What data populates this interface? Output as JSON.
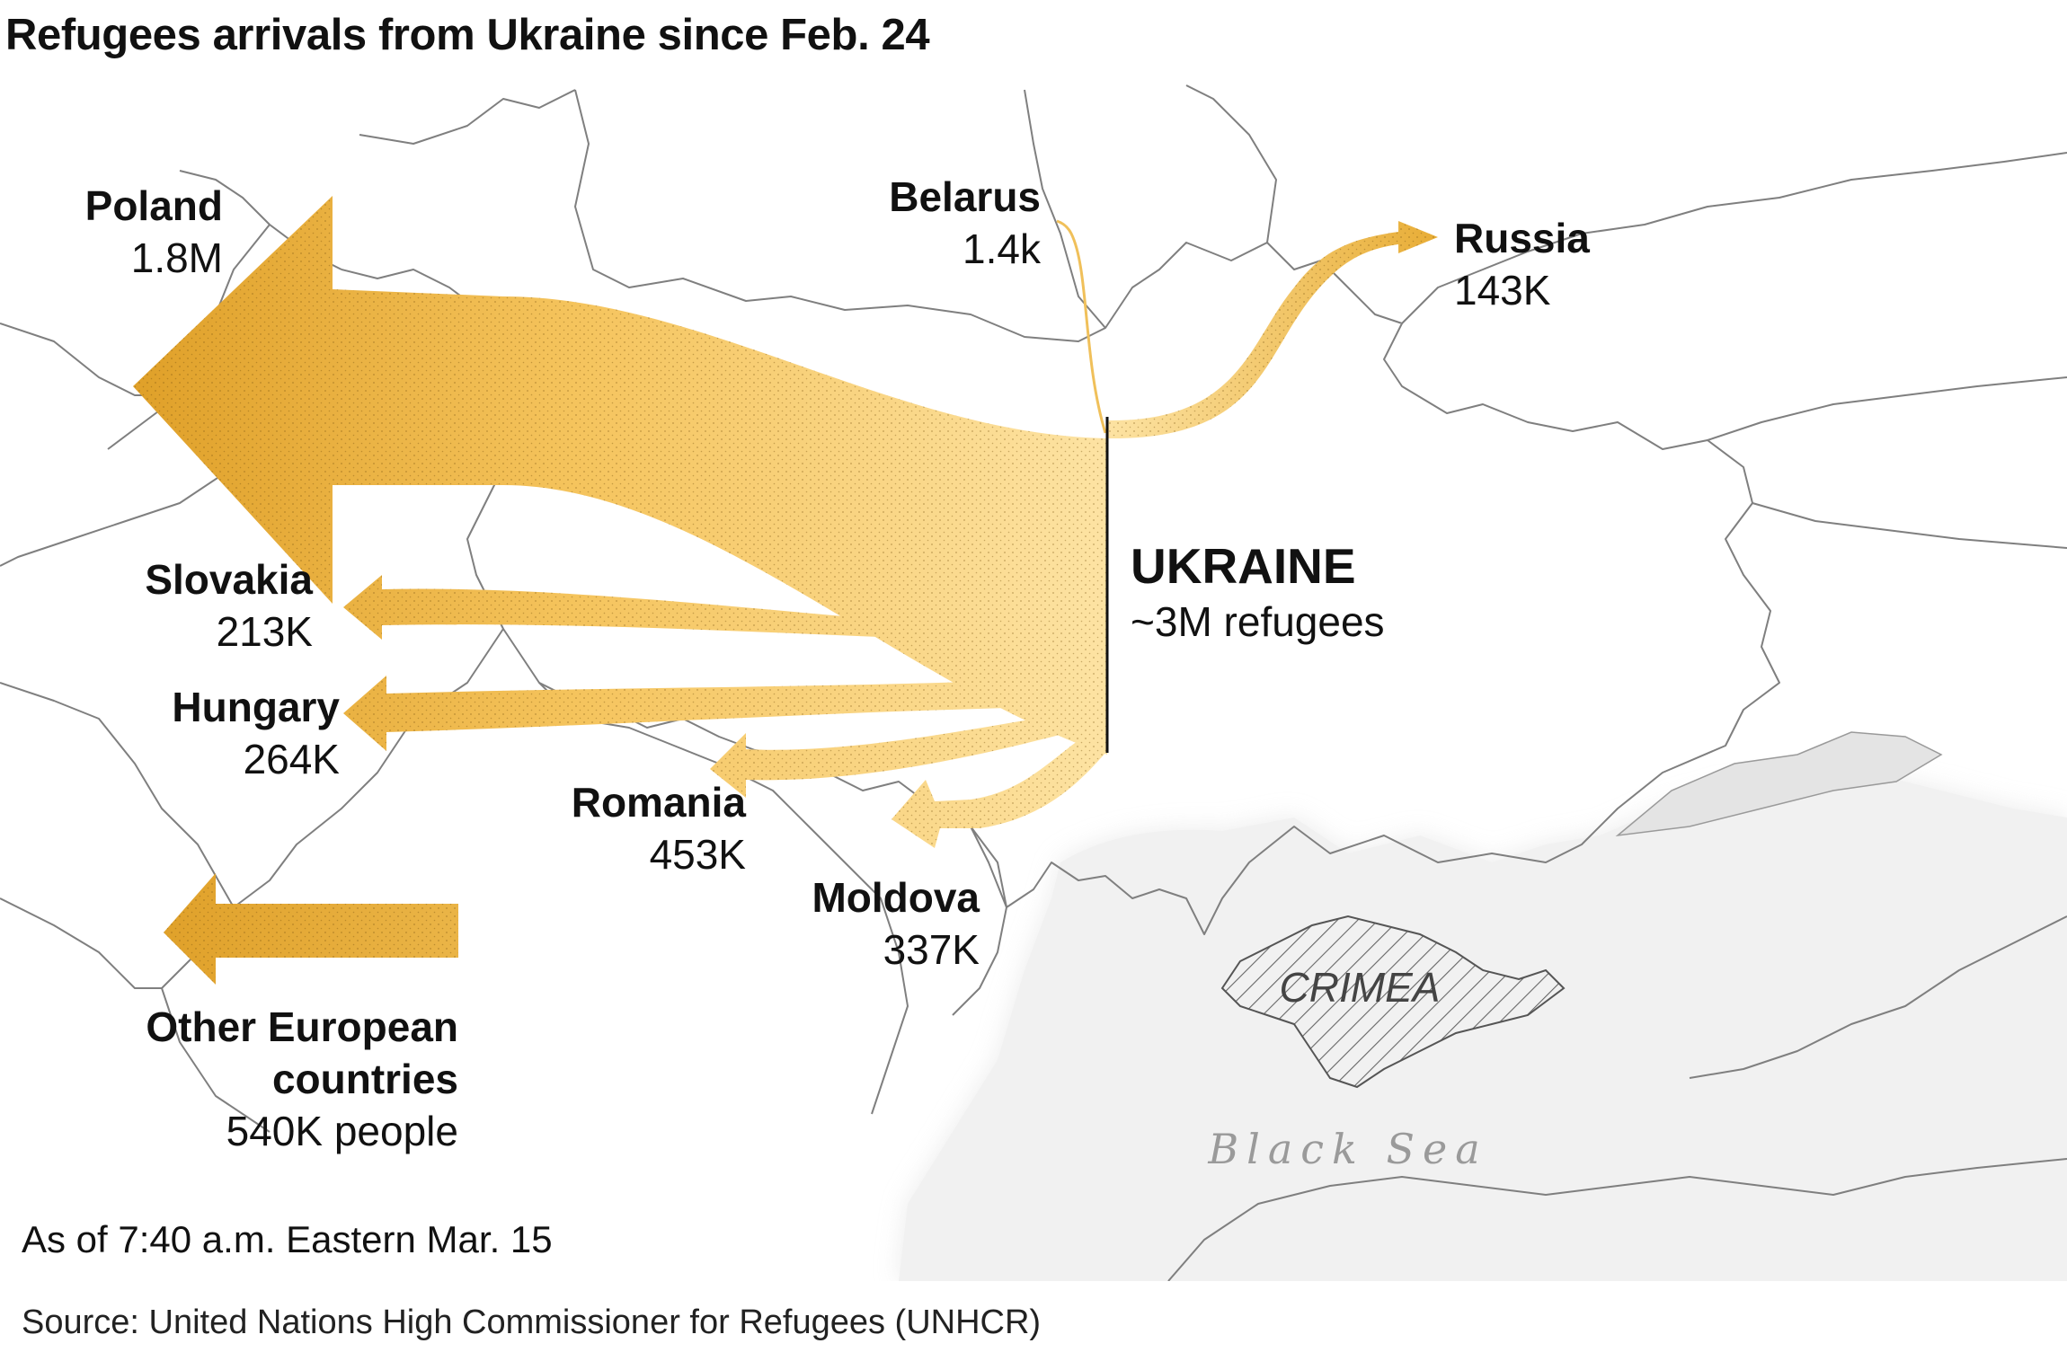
{
  "title": "Refugees arrivals from Ukraine since Feb. 24",
  "as_of": "As of 7:40 a.m. Eastern Mar. 15",
  "source": "Source: United Nations High Commissioner for Refugees (UNHCR)",
  "colors": {
    "arrow_dark": "#e0a12a",
    "arrow_light": "#fbd98a",
    "border": "#7a7a7a",
    "sea": "#ececec"
  },
  "origin": {
    "name": "UKRAINE",
    "value": "~3M refugees"
  },
  "destinations": [
    {
      "key": "poland",
      "name": "Poland",
      "value": "1.8M",
      "refugees": 1800000
    },
    {
      "key": "slovakia",
      "name": "Slovakia",
      "value": "213K",
      "refugees": 213000
    },
    {
      "key": "hungary",
      "name": "Hungary",
      "value": "264K",
      "refugees": 264000
    },
    {
      "key": "romania",
      "name": "Romania",
      "value": "453K",
      "refugees": 453000
    },
    {
      "key": "moldova",
      "name": "Moldova",
      "value": "337K",
      "refugees": 337000
    },
    {
      "key": "belarus",
      "name": "Belarus",
      "value": "1.4k",
      "refugees": 1400
    },
    {
      "key": "russia",
      "name": "Russia",
      "value": "143K",
      "refugees": 143000
    },
    {
      "key": "other",
      "name": "Other European countries",
      "name_lines": [
        "Other European",
        "countries"
      ],
      "value": "540K people",
      "refugees": 540000
    }
  ],
  "places": {
    "crimea": "CRIMEA",
    "sea": "Black Sea"
  }
}
